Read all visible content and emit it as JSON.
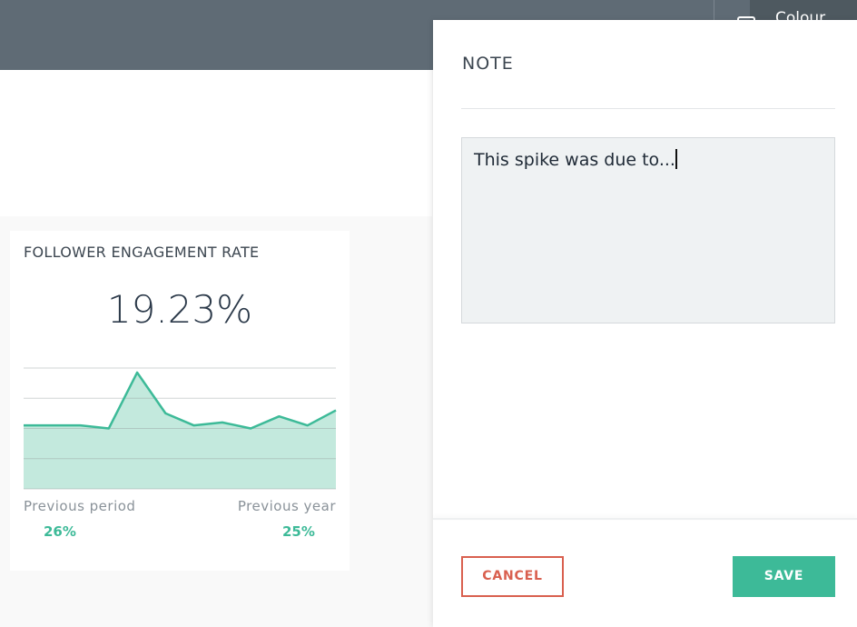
{
  "toolbar": {
    "colour_button": "Colour"
  },
  "widget": {
    "title": "FOLLOWER ENGAGEMENT RATE",
    "metric": "19.23%",
    "previous_period": {
      "label": "Previous period",
      "value": "26%"
    },
    "previous_year": {
      "label": "Previous year",
      "value": "25%"
    }
  },
  "chart_data": {
    "type": "area",
    "categories": [
      null,
      null,
      null,
      null,
      null,
      null,
      null,
      null,
      null,
      null,
      null,
      null
    ],
    "values": [
      2.1,
      2.1,
      2.1,
      2.0,
      3.85,
      2.5,
      2.1,
      2.2,
      2.0,
      2.4,
      2.1,
      2.6
    ],
    "color": "#3dba98",
    "fill": "#c3e9dd",
    "ylim": [
      0,
      4
    ],
    "yticks": [
      0,
      1,
      2,
      3,
      4
    ],
    "grid": true
  },
  "note_panel": {
    "title": "NOTE",
    "text": "This spike was due to...",
    "cancel": "CANCEL",
    "save": "SAVE"
  }
}
